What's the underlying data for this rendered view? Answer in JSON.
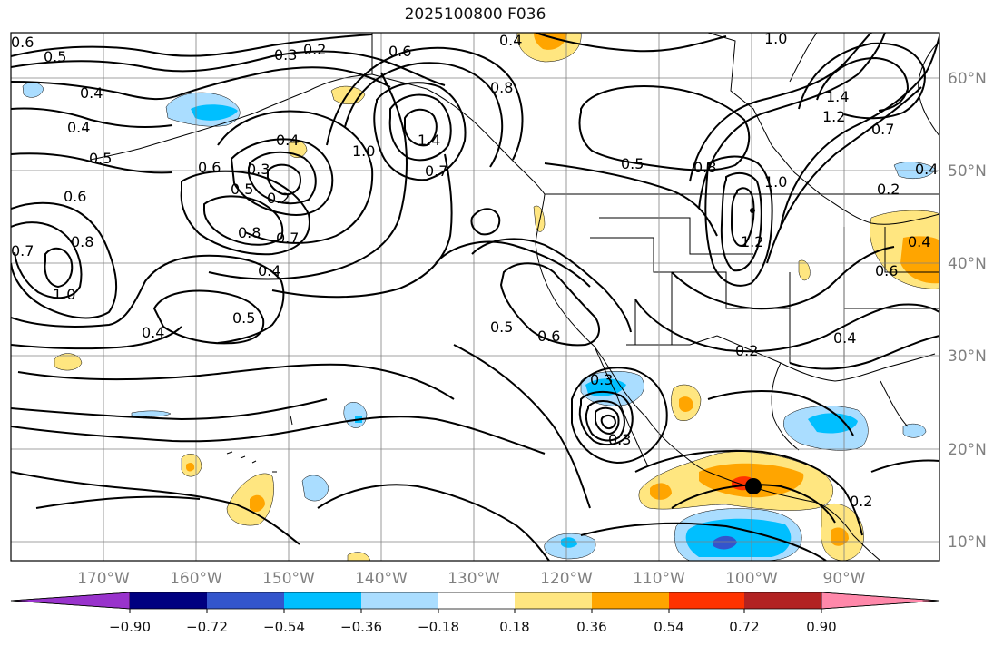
{
  "title": "2025100800 F036",
  "longitude_ticks": [
    "170°W",
    "160°W",
    "150°W",
    "140°W",
    "130°W",
    "120°W",
    "110°W",
    "100°W",
    "90°W"
  ],
  "latitude_ticks": [
    "60°N",
    "50°N",
    "40°N",
    "30°N",
    "20°N",
    "10°N"
  ],
  "colorbar": {
    "ticks": [
      "−0.90",
      "−0.72",
      "−0.54",
      "−0.36",
      "−0.18",
      "0.18",
      "0.36",
      "0.54",
      "0.72",
      "0.90"
    ],
    "colors": [
      "#9933cc",
      "#000080",
      "#3355cc",
      "#00bfff",
      "#aaddff",
      "#ffffff",
      "#ffe680",
      "#ffa500",
      "#ff3300",
      "#b22222",
      "#ff88aa"
    ]
  },
  "contour_labels": [
    "0.6",
    "0.5",
    "0.3",
    "0.2",
    "0.4",
    "0.6",
    "0.4",
    "0.4",
    "0.5",
    "0.6",
    "0.4",
    "0.3",
    "0.5",
    "0.2",
    "0.8",
    "0.7",
    "1.0",
    "1.4",
    "0.7",
    "0.8",
    "0.5",
    "0.8",
    "1.0",
    "1.2",
    "0.6",
    "0.8",
    "0.7",
    "1.0",
    "0.4",
    "0.5",
    "0.4",
    "0.5",
    "0.6",
    "0.3",
    "0.2",
    "0.4",
    "0.2",
    "0.3",
    "0.4",
    "0.6",
    "1.4",
    "1.2",
    "0.4",
    "0.7",
    "1.0",
    "0.2"
  ]
}
